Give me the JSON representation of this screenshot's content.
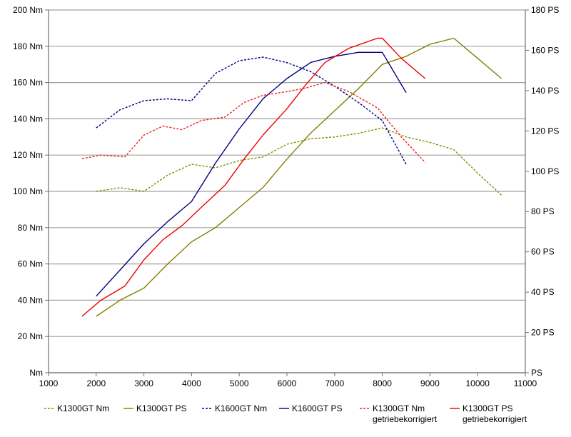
{
  "chart_data": {
    "type": "line",
    "title": "",
    "xlabel": "",
    "ylabel_left": "",
    "ylabel_right": "",
    "xlim": [
      1000,
      11000
    ],
    "ylim_left": [
      0,
      200
    ],
    "ylim_right": [
      0,
      180
    ],
    "grid": "horizontal",
    "legend_position": "bottom",
    "x_ticks": [
      1000,
      2000,
      3000,
      4000,
      5000,
      6000,
      7000,
      8000,
      9000,
      10000,
      11000
    ],
    "x_tick_labels": [
      "1000",
      "2000",
      "3000",
      "4000",
      "5000",
      "6000",
      "7000",
      "8000",
      "9000",
      "10000",
      "11000"
    ],
    "y_left_ticks": [
      0,
      20,
      40,
      60,
      80,
      100,
      120,
      140,
      160,
      180,
      200
    ],
    "y_left_tick_labels": [
      "Nm",
      "20 Nm",
      "40 Nm",
      "60 Nm",
      "80 Nm",
      "100 Nm",
      "120 Nm",
      "140 Nm",
      "160 Nm",
      "180 Nm",
      "200 Nm"
    ],
    "y_right_ticks": [
      0,
      20,
      40,
      60,
      80,
      100,
      120,
      140,
      160,
      180
    ],
    "y_right_tick_labels": [
      "PS",
      "20 PS",
      "40 PS",
      "60 PS",
      "80 PS",
      "100 PS",
      "120 PS",
      "140 PS",
      "160 PS",
      "180 PS"
    ],
    "series": [
      {
        "name": "K1300GT Nm",
        "axis": "left",
        "color": "#8b8b00",
        "dashed": true,
        "x": [
          2000,
          2500,
          3000,
          3500,
          4000,
          4500,
          5000,
          5500,
          6000,
          6500,
          7000,
          7500,
          8000,
          8500,
          9000,
          9500,
          10000,
          10500
        ],
        "y": [
          100,
          102,
          100,
          109,
          115,
          113,
          117,
          119,
          126,
          129,
          130,
          132,
          135,
          130,
          127,
          123,
          110,
          98
        ]
      },
      {
        "name": "K1300GT PS",
        "axis": "right",
        "color": "#808000",
        "dashed": false,
        "x": [
          2000,
          2500,
          3000,
          3500,
          4000,
          4500,
          5000,
          5500,
          6000,
          6500,
          7000,
          7500,
          8000,
          8500,
          9000,
          9500,
          10000,
          10500
        ],
        "y": [
          28,
          36,
          42,
          54,
          65,
          72,
          82,
          92,
          106,
          119,
          130,
          141,
          153,
          157,
          163,
          166,
          156,
          146
        ]
      },
      {
        "name": "K1600GT Nm",
        "axis": "left",
        "color": "#000080",
        "dashed": true,
        "x": [
          2000,
          2500,
          3000,
          3500,
          4000,
          4500,
          5000,
          5500,
          6000,
          6500,
          7000,
          7500,
          8000,
          8500
        ],
        "y": [
          135,
          145,
          150,
          151,
          150,
          165,
          172,
          174,
          171,
          166,
          158,
          149,
          139,
          115
        ]
      },
      {
        "name": "K1600GT PS",
        "axis": "right",
        "color": "#000080",
        "dashed": false,
        "x": [
          2000,
          2500,
          3000,
          3500,
          4000,
          4500,
          5000,
          5500,
          6000,
          6500,
          7000,
          7500,
          8000,
          8500
        ],
        "y": [
          38,
          51,
          64,
          75,
          85,
          104,
          121,
          136,
          146,
          154,
          157,
          159,
          159,
          139
        ]
      },
      {
        "name": "K1300GT Nm getriebekorrigiert",
        "axis": "left",
        "color": "#ee2222",
        "dashed": true,
        "x": [
          1700,
          2100,
          2600,
          3000,
          3400,
          3800,
          4200,
          4700,
          5100,
          5500,
          6000,
          6400,
          6800,
          7300,
          7900,
          8400,
          8900
        ],
        "y": [
          118,
          120,
          119,
          131,
          136,
          134,
          139,
          141,
          149,
          153,
          155,
          157,
          160,
          155,
          146,
          130,
          116
        ]
      },
      {
        "name": "K1300GT PS getriebekorrigiert",
        "axis": "right",
        "color": "#ee0000",
        "dashed": false,
        "x": [
          1700,
          2100,
          2600,
          3000,
          3400,
          3800,
          4200,
          4700,
          5100,
          5500,
          6000,
          6400,
          6800,
          7300,
          7900,
          8000,
          8400,
          8900
        ],
        "y": [
          28,
          36,
          43,
          56,
          66,
          73,
          82,
          93,
          106,
          118,
          131,
          143,
          154,
          161,
          166,
          166,
          156,
          146
        ]
      }
    ],
    "legend": [
      {
        "line1": "K1300GT Nm",
        "line2": ""
      },
      {
        "line1": "K1300GT PS",
        "line2": ""
      },
      {
        "line1": "K1600GT Nm",
        "line2": ""
      },
      {
        "line1": "K1600GT PS",
        "line2": ""
      },
      {
        "line1": "K1300GT Nm",
        "line2": "getriebekorrigiert"
      },
      {
        "line1": "K1300GT PS",
        "line2": "getriebekorrigiert"
      }
    ]
  }
}
